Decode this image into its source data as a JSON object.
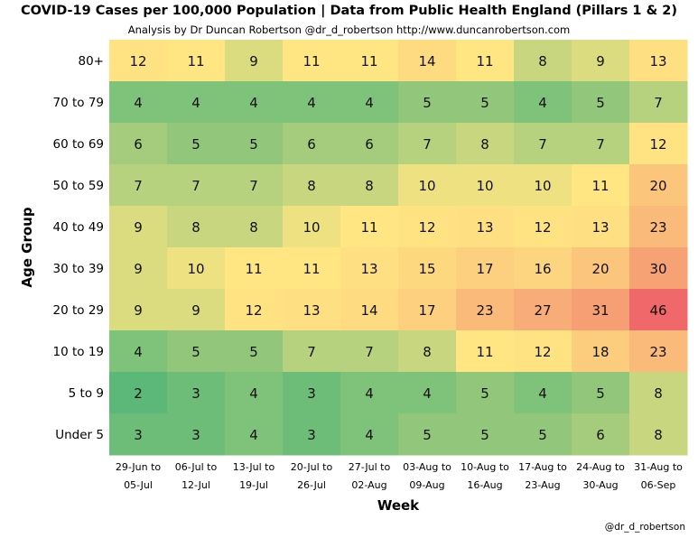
{
  "header": {
    "title": "COVID-19 Cases per 100,000 Population | Data from Public Health England (Pillars 1 & 2)",
    "subtitle": "Analysis by Dr Duncan Robertson @dr_d_robertson http://www.duncanrobertson.com"
  },
  "credit": "@dr_d_robertson",
  "chart_data": {
    "type": "heatmap",
    "title": "COVID-19 Cases per 100,000 Population | Data from Public Health England (Pillars 1 & 2)",
    "xlabel": "Week",
    "ylabel": "Age Group",
    "x_categories": [
      [
        "29-Jun to",
        "05-Jul"
      ],
      [
        "06-Jul to",
        "12-Jul"
      ],
      [
        "13-Jul to",
        "19-Jul"
      ],
      [
        "20-Jul to",
        "26-Jul"
      ],
      [
        "27-Jul to",
        "02-Aug"
      ],
      [
        "03-Aug to",
        "09-Aug"
      ],
      [
        "10-Aug to",
        "16-Aug"
      ],
      [
        "17-Aug to",
        "23-Aug"
      ],
      [
        "24-Aug to",
        "30-Aug"
      ],
      [
        "31-Aug to",
        "06-Sep"
      ]
    ],
    "y_categories": [
      "80+",
      "70 to 79",
      "60 to 69",
      "50 to 59",
      "40 to 49",
      "30 to 39",
      "20 to 29",
      "10 to 19",
      "5 to 9",
      "Under 5"
    ],
    "values": [
      [
        12,
        11,
        9,
        11,
        11,
        14,
        11,
        8,
        9,
        13
      ],
      [
        4,
        4,
        4,
        4,
        4,
        5,
        5,
        4,
        5,
        7
      ],
      [
        6,
        5,
        5,
        6,
        6,
        7,
        8,
        7,
        7,
        12
      ],
      [
        7,
        7,
        7,
        8,
        8,
        10,
        10,
        10,
        11,
        20
      ],
      [
        9,
        8,
        8,
        10,
        11,
        12,
        13,
        12,
        13,
        23
      ],
      [
        9,
        10,
        11,
        11,
        13,
        15,
        17,
        16,
        20,
        30
      ],
      [
        9,
        9,
        12,
        13,
        14,
        17,
        23,
        27,
        31,
        46
      ],
      [
        4,
        5,
        5,
        7,
        7,
        8,
        11,
        12,
        18,
        23
      ],
      [
        2,
        3,
        4,
        3,
        4,
        4,
        5,
        4,
        5,
        8
      ],
      [
        3,
        3,
        4,
        3,
        4,
        5,
        5,
        5,
        6,
        8
      ]
    ],
    "color_scale": [
      "#5bb878",
      "#ffe682",
      "#f0686a"
    ]
  }
}
